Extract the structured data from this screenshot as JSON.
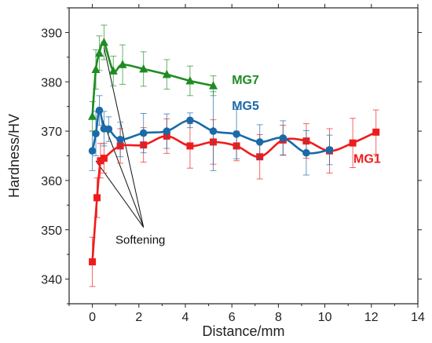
{
  "chart_data": {
    "type": "line",
    "xlabel": "Distance/mm",
    "ylabel": "Hardness/HV",
    "xlim": [
      -1,
      14
    ],
    "ylim": [
      335,
      395
    ],
    "xticks": [
      "0",
      "2",
      "4",
      "6",
      "8",
      "10",
      "12",
      "14"
    ],
    "yticks": [
      "340",
      "350",
      "360",
      "370",
      "380",
      "390"
    ],
    "grid": false,
    "annotation": {
      "text": "Softening",
      "targets": [
        {
          "x": 0.15,
          "y": 364
        },
        {
          "x": 0.3,
          "y": 374
        },
        {
          "x": 0.5,
          "y": 387
        }
      ]
    },
    "series": [
      {
        "name": "MG1",
        "color": "#ee1c1c",
        "marker": "square",
        "x": [
          0,
          0.2,
          0.35,
          0.5,
          1.2,
          2.2,
          3.2,
          4.2,
          5.2,
          6.2,
          7.2,
          8.2,
          9.2,
          10.2,
          11.2,
          12.2
        ],
        "y": [
          343.5,
          356.5,
          364,
          364.5,
          367,
          367.2,
          369,
          367,
          367.8,
          367,
          364.8,
          368.2,
          368,
          366,
          367.6,
          369.8
        ],
        "err": [
          5,
          4,
          3.5,
          3,
          3.5,
          3.5,
          3.5,
          4.5,
          4.5,
          3,
          4.5,
          3,
          3.5,
          4.5,
          5,
          4.5
        ]
      },
      {
        "name": "MG5",
        "color": "#1a6aa8",
        "marker": "circle",
        "x": [
          0,
          0.15,
          0.3,
          0.5,
          0.7,
          1.2,
          2.2,
          3.2,
          4.2,
          5.2,
          6.2,
          7.2,
          8.2,
          9.2,
          10.2
        ],
        "y": [
          366,
          369.5,
          374.2,
          370.5,
          370.4,
          368.3,
          369.6,
          370,
          372.2,
          370,
          369.4,
          367.8,
          368.6,
          365.6,
          366.2
        ],
        "err": [
          4,
          4.5,
          3,
          3.5,
          2.5,
          3.5,
          4,
          3.5,
          1.5,
          8,
          5,
          3.5,
          3.5,
          4.5,
          3
        ]
      },
      {
        "name": "MG7",
        "color": "#1e8c22",
        "marker": "triangle",
        "x": [
          0,
          0.15,
          0.3,
          0.5,
          0.9,
          1.3,
          2.2,
          3.2,
          4.2,
          5.2
        ],
        "y": [
          373,
          382.5,
          385.8,
          388,
          382.2,
          383.5,
          382.6,
          381.5,
          380.2,
          379.2
        ],
        "err": [
          3,
          4,
          3.5,
          3.5,
          3,
          4,
          3.5,
          3,
          3,
          2
        ]
      }
    ]
  }
}
